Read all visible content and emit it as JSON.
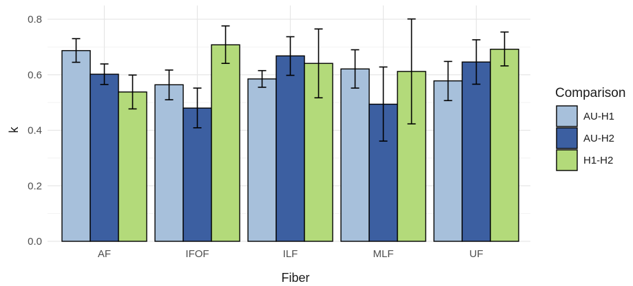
{
  "chart_data": {
    "type": "bar",
    "xlabel": "Fiber",
    "ylabel": "k",
    "categories": [
      "AF",
      "IFOF",
      "ILF",
      "MLF",
      "UF"
    ],
    "ylim": [
      0,
      0.8
    ],
    "yticks": [
      "0.0",
      "0.2",
      "0.4",
      "0.6",
      "0.8"
    ],
    "ytick_values": [
      0,
      0.2,
      0.4,
      0.6,
      0.8
    ],
    "grid": true,
    "legend": {
      "title": "Comparison",
      "placement": "right"
    },
    "series": [
      {
        "name": "AU-H1",
        "color": "#a7c0db",
        "values": [
          0.687,
          0.564,
          0.585,
          0.621,
          0.578
        ],
        "err_low": [
          0.645,
          0.51,
          0.555,
          0.552,
          0.507
        ],
        "err_high": [
          0.73,
          0.617,
          0.615,
          0.69,
          0.648
        ]
      },
      {
        "name": "AU-H2",
        "color": "#3c5fa1",
        "values": [
          0.602,
          0.48,
          0.668,
          0.494,
          0.646
        ],
        "err_low": [
          0.565,
          0.409,
          0.598,
          0.361,
          0.566
        ],
        "err_high": [
          0.639,
          0.552,
          0.737,
          0.628,
          0.726
        ]
      },
      {
        "name": "H1-H2",
        "color": "#b3da7a",
        "values": [
          0.538,
          0.708,
          0.641,
          0.612,
          0.692
        ],
        "err_low": [
          0.477,
          0.641,
          0.517,
          0.423,
          0.632
        ],
        "err_high": [
          0.599,
          0.776,
          0.765,
          0.801,
          0.754
        ]
      }
    ]
  }
}
